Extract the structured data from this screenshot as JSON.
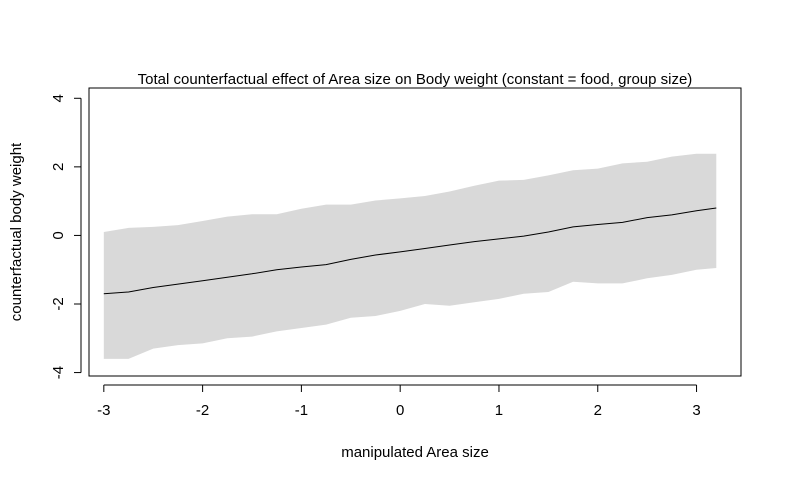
{
  "chart_data": {
    "type": "line",
    "title": "Total counterfactual effect of Area size on Body weight (constant = food, group size)",
    "xlabel": "manipulated Area size",
    "ylabel": "counterfactual body weight",
    "xlim": [
      -3.15,
      3.45
    ],
    "ylim": [
      -4.1,
      4.3
    ],
    "x_ticks": [
      -3,
      -2,
      -1,
      0,
      1,
      2,
      3
    ],
    "y_ticks": [
      -4,
      -2,
      0,
      2,
      4
    ],
    "x_tick_labels": [
      "-3",
      "-2",
      "-1",
      "0",
      "1",
      "2",
      "3"
    ],
    "y_tick_labels": [
      "-4",
      "-2",
      "0",
      "2",
      "4"
    ],
    "grid": false,
    "colors": {
      "band": "#d9d9d9",
      "line": "#000000",
      "frame": "#000000"
    },
    "x": [
      -3.0,
      -2.75,
      -2.5,
      -2.25,
      -2.0,
      -1.75,
      -1.5,
      -1.25,
      -1.0,
      -0.75,
      -0.5,
      -0.25,
      0.0,
      0.25,
      0.5,
      0.75,
      1.0,
      1.25,
      1.5,
      1.75,
      2.0,
      2.25,
      2.5,
      2.75,
      3.0,
      3.2
    ],
    "series": [
      {
        "values": [
          -1.7,
          -1.65,
          -1.52,
          -1.42,
          -1.32,
          -1.22,
          -1.12,
          -1.0,
          -0.92,
          -0.85,
          -0.7,
          -0.57,
          -0.48,
          -0.38,
          -0.28,
          -0.18,
          -0.1,
          -0.02,
          0.1,
          0.25,
          0.32,
          0.38,
          0.52,
          0.6,
          0.72,
          0.8
        ]
      }
    ],
    "band": {
      "upper": [
        0.1,
        0.22,
        0.25,
        0.3,
        0.42,
        0.55,
        0.62,
        0.62,
        0.78,
        0.9,
        0.9,
        1.02,
        1.08,
        1.15,
        1.28,
        1.45,
        1.6,
        1.62,
        1.75,
        1.9,
        1.95,
        2.1,
        2.15,
        2.3,
        2.38,
        2.38
      ],
      "lower": [
        -3.6,
        -3.6,
        -3.3,
        -3.2,
        -3.15,
        -3.0,
        -2.95,
        -2.8,
        -2.7,
        -2.6,
        -2.4,
        -2.35,
        -2.2,
        -2.0,
        -2.05,
        -1.95,
        -1.85,
        -1.7,
        -1.65,
        -1.35,
        -1.4,
        -1.4,
        -1.25,
        -1.15,
        -1.0,
        -0.95
      ]
    }
  }
}
